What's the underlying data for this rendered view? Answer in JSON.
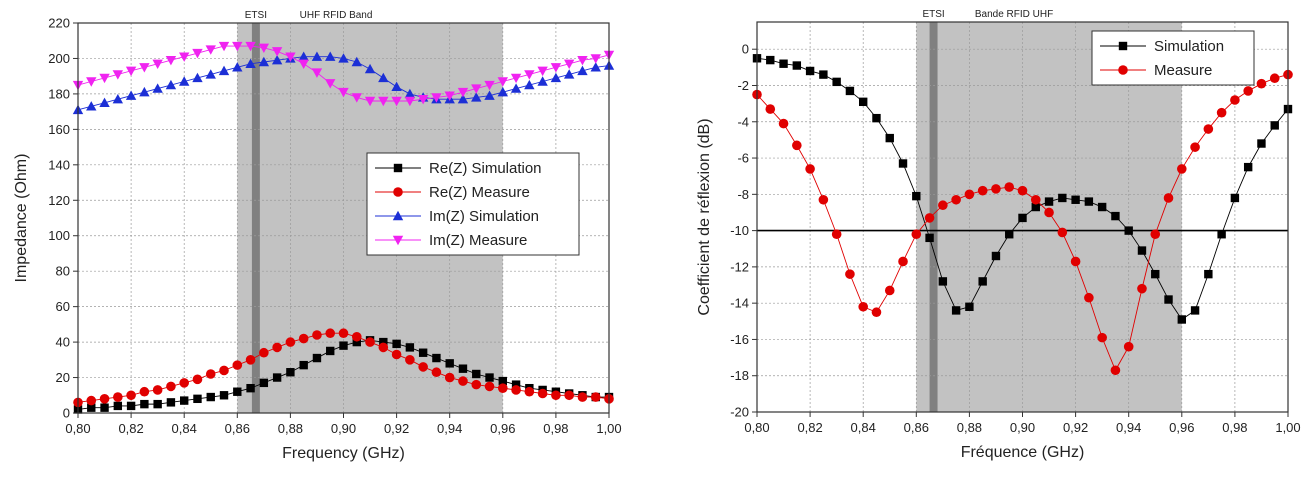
{
  "chart_data": [
    {
      "type": "line",
      "xlabel": "Frequency (GHz)",
      "ylabel": "Impedance (Ohm)",
      "xlim": [
        0.8,
        1.0
      ],
      "ylim": [
        0,
        220
      ],
      "xticks": [
        "0,80",
        "0,82",
        "0,84",
        "0,86",
        "0,88",
        "0,90",
        "0,92",
        "0,94",
        "0,96",
        "0,98",
        "1,00"
      ],
      "yticks": [
        "0",
        "20",
        "40",
        "60",
        "80",
        "100",
        "120",
        "140",
        "160",
        "180",
        "200",
        "220"
      ],
      "grid": true,
      "legend_position": "center-right",
      "bands": [
        {
          "label": "UHF RFID Band",
          "x0": 0.86,
          "x1": 0.96,
          "color": "#c2c2c2"
        },
        {
          "label": "ETSI",
          "x0": 0.8655,
          "x1": 0.8685,
          "color": "#808080"
        }
      ],
      "series": [
        {
          "name": "Re(Z) Simulation",
          "color": "#000000",
          "marker": "square",
          "x": [
            0.8,
            0.805,
            0.81,
            0.815,
            0.82,
            0.825,
            0.83,
            0.835,
            0.84,
            0.845,
            0.85,
            0.855,
            0.86,
            0.865,
            0.87,
            0.875,
            0.88,
            0.885,
            0.89,
            0.895,
            0.9,
            0.905,
            0.91,
            0.915,
            0.92,
            0.925,
            0.93,
            0.935,
            0.94,
            0.945,
            0.95,
            0.955,
            0.96,
            0.965,
            0.97,
            0.975,
            0.98,
            0.985,
            0.99,
            0.995,
            1.0
          ],
          "y": [
            2,
            3,
            3,
            4,
            4,
            5,
            5,
            6,
            7,
            8,
            9,
            10,
            12,
            14,
            17,
            20,
            23,
            27,
            31,
            35,
            38,
            40,
            41,
            40,
            39,
            37,
            34,
            31,
            28,
            25,
            22,
            20,
            18,
            16,
            14,
            13,
            12,
            11,
            10,
            9,
            9
          ]
        },
        {
          "name": "Re(Z) Measure",
          "color": "#e00000",
          "marker": "circle",
          "x": [
            0.8,
            0.805,
            0.81,
            0.815,
            0.82,
            0.825,
            0.83,
            0.835,
            0.84,
            0.845,
            0.85,
            0.855,
            0.86,
            0.865,
            0.87,
            0.875,
            0.88,
            0.885,
            0.89,
            0.895,
            0.9,
            0.905,
            0.91,
            0.915,
            0.92,
            0.925,
            0.93,
            0.935,
            0.94,
            0.945,
            0.95,
            0.955,
            0.96,
            0.965,
            0.97,
            0.975,
            0.98,
            0.985,
            0.99,
            0.995,
            1.0
          ],
          "y": [
            6,
            7,
            8,
            9,
            10,
            12,
            13,
            15,
            17,
            19,
            22,
            24,
            27,
            30,
            34,
            37,
            40,
            42,
            44,
            45,
            45,
            43,
            40,
            37,
            33,
            30,
            26,
            23,
            20,
            18,
            16,
            15,
            14,
            13,
            12,
            11,
            10,
            10,
            9,
            9,
            8
          ]
        },
        {
          "name": "Im(Z) Simulation",
          "color": "#1c2fd6",
          "marker": "triangle-up",
          "x": [
            0.8,
            0.805,
            0.81,
            0.815,
            0.82,
            0.825,
            0.83,
            0.835,
            0.84,
            0.845,
            0.85,
            0.855,
            0.86,
            0.865,
            0.87,
            0.875,
            0.88,
            0.885,
            0.89,
            0.895,
            0.9,
            0.905,
            0.91,
            0.915,
            0.92,
            0.925,
            0.93,
            0.935,
            0.94,
            0.945,
            0.95,
            0.955,
            0.96,
            0.965,
            0.97,
            0.975,
            0.98,
            0.985,
            0.99,
            0.995,
            1.0
          ],
          "y": [
            171,
            173,
            175,
            177,
            179,
            181,
            183,
            185,
            187,
            189,
            191,
            193,
            195,
            197,
            198,
            199,
            200,
            201,
            201,
            201,
            200,
            198,
            194,
            189,
            184,
            180,
            178,
            177,
            177,
            177,
            178,
            179,
            181,
            183,
            185,
            187,
            189,
            191,
            193,
            195,
            196
          ]
        },
        {
          "name": "Im(Z) Measure",
          "color": "#f023f0",
          "marker": "triangle-down",
          "x": [
            0.8,
            0.805,
            0.81,
            0.815,
            0.82,
            0.825,
            0.83,
            0.835,
            0.84,
            0.845,
            0.85,
            0.855,
            0.86,
            0.865,
            0.87,
            0.875,
            0.88,
            0.885,
            0.89,
            0.895,
            0.9,
            0.905,
            0.91,
            0.915,
            0.92,
            0.925,
            0.93,
            0.935,
            0.94,
            0.945,
            0.95,
            0.955,
            0.96,
            0.965,
            0.97,
            0.975,
            0.98,
            0.985,
            0.99,
            0.995,
            1.0
          ],
          "y": [
            185,
            187,
            189,
            191,
            193,
            195,
            197,
            199,
            201,
            203,
            205,
            207,
            207,
            207,
            206,
            204,
            201,
            197,
            192,
            186,
            181,
            178,
            176,
            176,
            176,
            176,
            177,
            178,
            179,
            181,
            183,
            185,
            187,
            189,
            191,
            193,
            195,
            197,
            199,
            200,
            202
          ]
        }
      ]
    },
    {
      "type": "line",
      "xlabel": "Fréquence (GHz)",
      "ylabel": "Coefficient de réflexion (dB)",
      "xlim": [
        0.8,
        1.0
      ],
      "ylim": [
        -20,
        1.5
      ],
      "xticks": [
        "0,80",
        "0,82",
        "0,84",
        "0,86",
        "0,88",
        "0,90",
        "0,92",
        "0,94",
        "0,96",
        "0,98",
        "1,00"
      ],
      "yticks": [
        "-20",
        "-18",
        "-16",
        "-14",
        "-12",
        "-10",
        "-8",
        "-6",
        "-4",
        "-2",
        "0"
      ],
      "grid": true,
      "legend_position": "top-right",
      "reference_line_y": -10,
      "bands": [
        {
          "label": "Bande RFID UHF",
          "x0": 0.86,
          "x1": 0.96,
          "color": "#c2c2c2"
        },
        {
          "label": "ETSI",
          "x0": 0.865,
          "x1": 0.868,
          "color": "#808080"
        }
      ],
      "series": [
        {
          "name": "Simulation",
          "color": "#000000",
          "marker": "square",
          "x": [
            0.8,
            0.805,
            0.81,
            0.815,
            0.82,
            0.825,
            0.83,
            0.835,
            0.84,
            0.845,
            0.85,
            0.855,
            0.86,
            0.865,
            0.87,
            0.875,
            0.88,
            0.885,
            0.89,
            0.895,
            0.9,
            0.905,
            0.91,
            0.915,
            0.92,
            0.925,
            0.93,
            0.935,
            0.94,
            0.945,
            0.95,
            0.955,
            0.96,
            0.965,
            0.97,
            0.975,
            0.98,
            0.985,
            0.99,
            0.995,
            1.0
          ],
          "y": [
            -0.5,
            -0.6,
            -0.8,
            -0.9,
            -1.2,
            -1.4,
            -1.8,
            -2.3,
            -2.9,
            -3.8,
            -4.9,
            -6.3,
            -8.1,
            -10.4,
            -12.8,
            -14.4,
            -14.2,
            -12.8,
            -11.4,
            -10.2,
            -9.3,
            -8.7,
            -8.4,
            -8.2,
            -8.3,
            -8.4,
            -8.7,
            -9.2,
            -10.0,
            -11.1,
            -12.4,
            -13.8,
            -14.9,
            -14.4,
            -12.4,
            -10.2,
            -8.2,
            -6.5,
            -5.2,
            -4.2,
            -3.3
          ]
        },
        {
          "name": "Measure",
          "color": "#e00000",
          "marker": "circle",
          "x": [
            0.8,
            0.805,
            0.81,
            0.815,
            0.82,
            0.825,
            0.83,
            0.835,
            0.84,
            0.845,
            0.85,
            0.855,
            0.86,
            0.865,
            0.87,
            0.875,
            0.88,
            0.885,
            0.89,
            0.895,
            0.9,
            0.905,
            0.91,
            0.915,
            0.92,
            0.925,
            0.93,
            0.935,
            0.94,
            0.945,
            0.95,
            0.955,
            0.96,
            0.965,
            0.97,
            0.975,
            0.98,
            0.985,
            0.99,
            0.995,
            1.0
          ],
          "y": [
            -2.5,
            -3.3,
            -4.1,
            -5.3,
            -6.6,
            -8.3,
            -10.2,
            -12.4,
            -14.2,
            -14.5,
            -13.3,
            -11.7,
            -10.2,
            -9.3,
            -8.6,
            -8.3,
            -8.0,
            -7.8,
            -7.7,
            -7.6,
            -7.8,
            -8.3,
            -9.0,
            -10.1,
            -11.7,
            -13.7,
            -15.9,
            -17.7,
            -16.4,
            -13.2,
            -10.2,
            -8.2,
            -6.6,
            -5.4,
            -4.4,
            -3.5,
            -2.8,
            -2.3,
            -1.9,
            -1.6,
            -1.4
          ]
        }
      ]
    }
  ]
}
